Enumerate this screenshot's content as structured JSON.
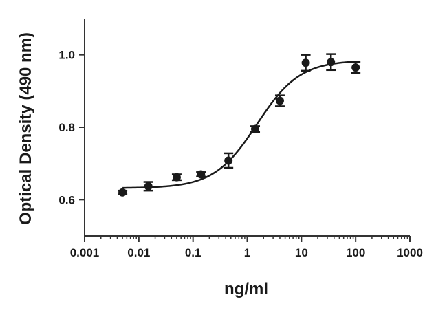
{
  "chart_data": {
    "type": "scatter",
    "title": "",
    "xlabel": "ng/ml",
    "ylabel": "Optical Density (490 nm)",
    "x_scale": "log",
    "xlim": [
      0.001,
      1000
    ],
    "ylim": [
      0.5,
      1.1
    ],
    "x_ticks": [
      0.001,
      0.01,
      0.1,
      1,
      10,
      100,
      1000
    ],
    "x_tick_labels": [
      "0.001",
      "0.01",
      "0.1",
      "1",
      "10",
      "100",
      "1000"
    ],
    "y_ticks": [
      0.6,
      0.8,
      1.0
    ],
    "y_tick_labels": [
      "0.6",
      "0.8",
      "1.0"
    ],
    "grid": false,
    "legend": "none",
    "points": [
      {
        "x": 0.005,
        "y": 0.62,
        "err": 0.005
      },
      {
        "x": 0.015,
        "y": 0.637,
        "err": 0.012
      },
      {
        "x": 0.05,
        "y": 0.662,
        "err": 0.008
      },
      {
        "x": 0.14,
        "y": 0.67,
        "err": 0.006
      },
      {
        "x": 0.45,
        "y": 0.708,
        "err": 0.02
      },
      {
        "x": 1.4,
        "y": 0.795,
        "err": 0.008
      },
      {
        "x": 4,
        "y": 0.873,
        "err": 0.015
      },
      {
        "x": 12,
        "y": 0.978,
        "err": 0.022
      },
      {
        "x": 35,
        "y": 0.98,
        "err": 0.022
      },
      {
        "x": 100,
        "y": 0.965,
        "err": 0.015
      }
    ],
    "fit_curve": {
      "bottom": 0.632,
      "top": 0.985,
      "logEC50": 0.18,
      "hill": 1.1
    },
    "colors": {
      "marker": "#1a1a1a",
      "line": "#1a1a1a",
      "axis": "#333333"
    }
  }
}
